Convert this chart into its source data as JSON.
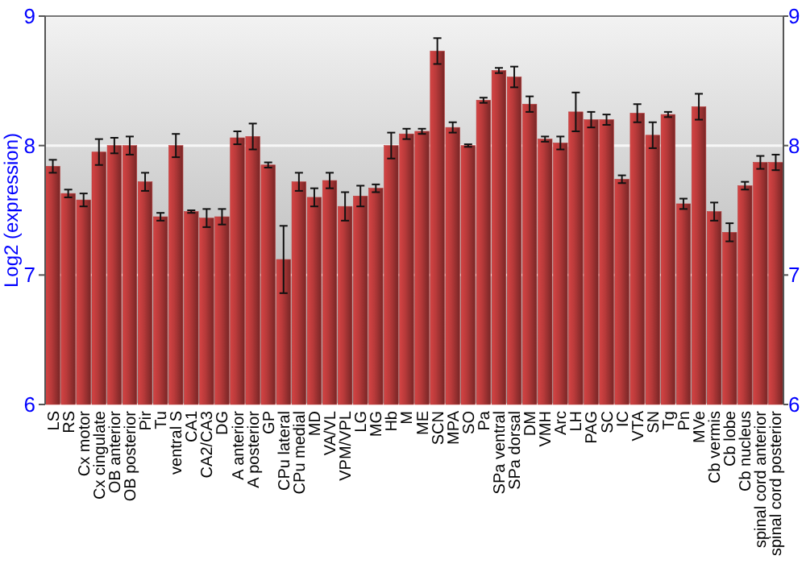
{
  "chart_data": {
    "type": "bar",
    "ylabel": "Log2 (expression)",
    "categories": [
      "LS",
      "RS",
      "Cx motor",
      "Cx cingulate",
      "OB anterior",
      "OB posterior",
      "Pir",
      "Tu",
      "ventral S",
      "CA1",
      "CA2/CA3",
      "DG",
      "A anterior",
      "A posterior",
      "GP",
      "CPu lateral",
      "CPu medial",
      "MD",
      "VA/VL",
      "VPM/VPL",
      "LG",
      "MG",
      "Hb",
      "M",
      "ME",
      "SCN",
      "MPA",
      "SO",
      "Pa",
      "SPa ventral",
      "SPa dorsal",
      "DM",
      "VMH",
      "Arc",
      "LH",
      "PAG",
      "SC",
      "IC",
      "VTA",
      "SN",
      "Tg",
      "Pn",
      "MVe",
      "Cb vermis",
      "Cb lobe",
      "Cb nucleus",
      "spinal cord anterior",
      "spinal cord posterior"
    ],
    "values": [
      7.84,
      7.63,
      7.58,
      7.95,
      8.0,
      8.0,
      7.72,
      7.45,
      8.0,
      7.49,
      7.44,
      7.45,
      8.06,
      8.07,
      7.85,
      7.12,
      7.72,
      7.6,
      7.73,
      7.53,
      7.61,
      7.67,
      8.0,
      8.09,
      8.11,
      8.73,
      8.14,
      8.0,
      8.35,
      8.58,
      8.53,
      8.32,
      8.05,
      8.02,
      8.26,
      8.2,
      8.2,
      7.74,
      8.25,
      8.08,
      8.24,
      7.55,
      8.3,
      7.49,
      7.33,
      7.69,
      7.87,
      7.87
    ],
    "errors": [
      0.05,
      0.03,
      0.05,
      0.1,
      0.06,
      0.07,
      0.07,
      0.03,
      0.09,
      0.01,
      0.07,
      0.06,
      0.05,
      0.1,
      0.02,
      0.26,
      0.07,
      0.07,
      0.06,
      0.11,
      0.08,
      0.03,
      0.1,
      0.04,
      0.02,
      0.1,
      0.04,
      0.01,
      0.02,
      0.02,
      0.08,
      0.06,
      0.02,
      0.05,
      0.15,
      0.06,
      0.04,
      0.03,
      0.07,
      0.1,
      0.02,
      0.04,
      0.1,
      0.07,
      0.07,
      0.03,
      0.05,
      0.06
    ],
    "color": "#b83a3a",
    "ylim": [
      6,
      9
    ],
    "yticks": [
      6,
      7,
      8,
      9
    ],
    "y2lim": [
      6,
      9
    ],
    "y2ticks": [
      6,
      7,
      8,
      9
    ],
    "grid": "y"
  }
}
